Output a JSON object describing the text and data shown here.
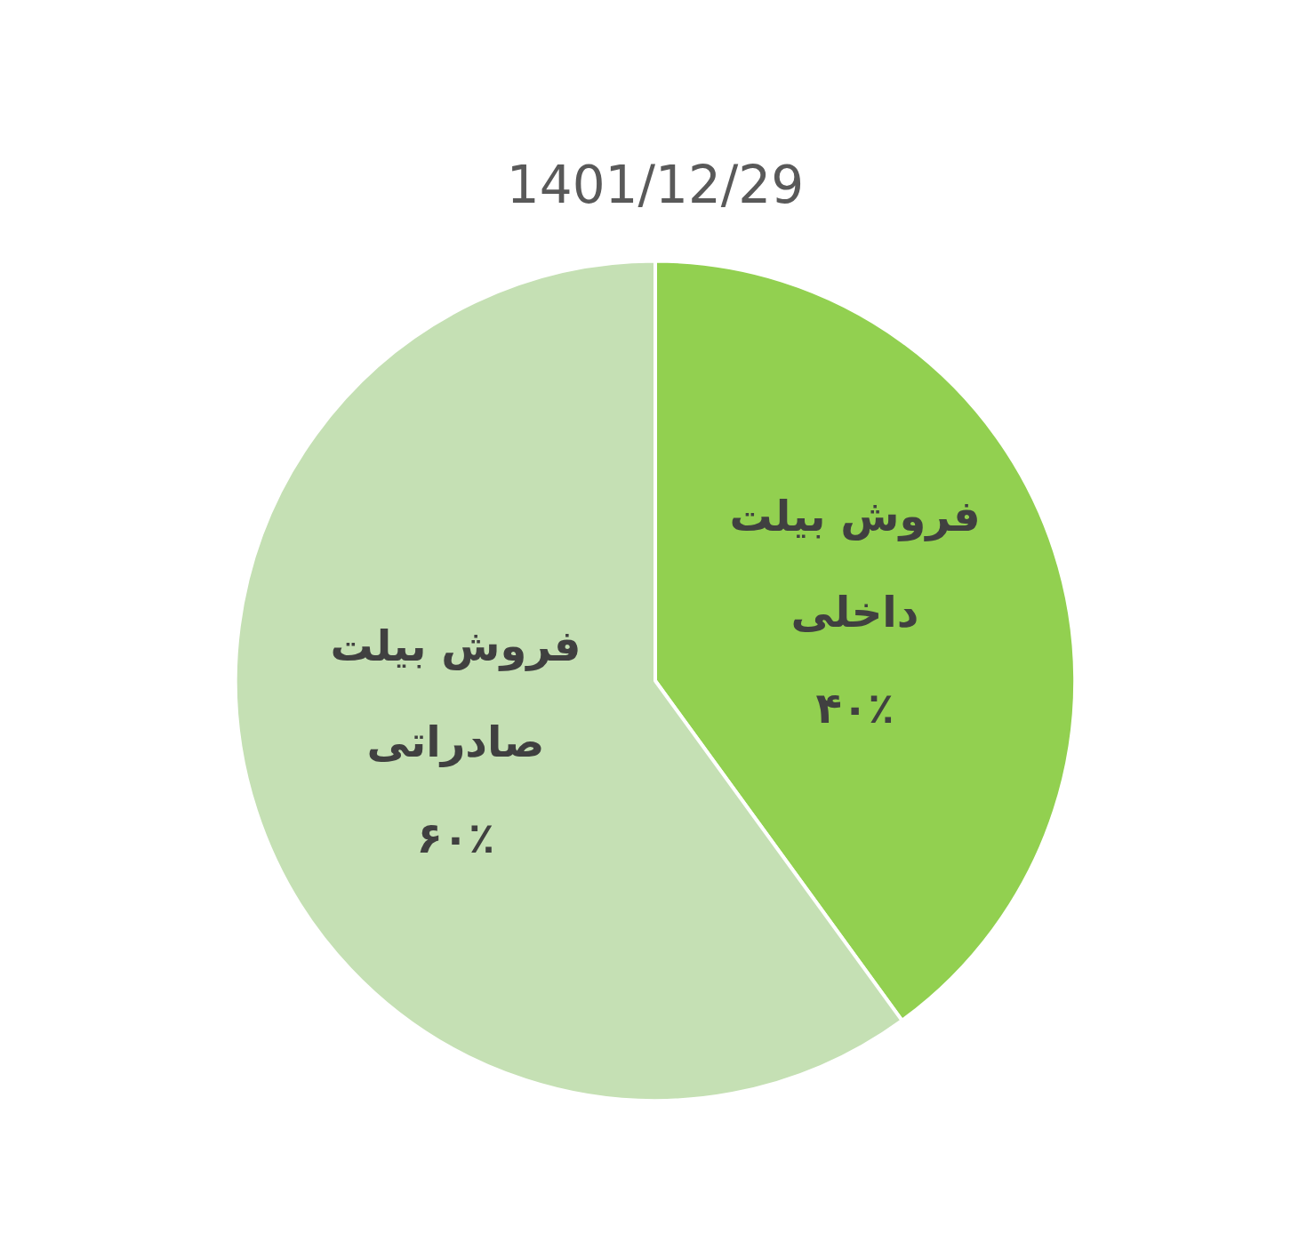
{
  "chart_data": {
    "type": "pie",
    "title": "1401/12/29",
    "categories": [
      "فروش بیلت داخلی",
      "فروش بیلت صادراتی"
    ],
    "values": [
      40,
      60
    ],
    "colors": [
      "#92d050",
      "#c5e0b4"
    ],
    "value_labels": [
      "۴۰٪",
      "۶۰٪"
    ]
  }
}
